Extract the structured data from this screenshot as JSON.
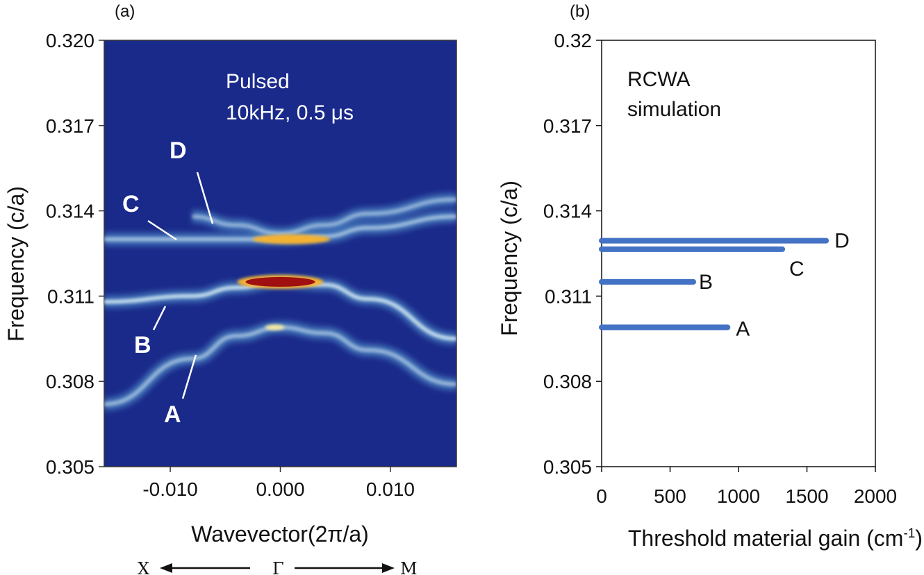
{
  "chart_data": [
    {
      "panel": "(a)",
      "type": "heatmap",
      "xlabel": "Wavevector(2π/a)",
      "ylabel": "Frequency (c/a)",
      "xlim": [
        -0.016,
        0.016
      ],
      "ylim": [
        0.305,
        0.32
      ],
      "xticks": [
        "-0.010",
        "0.000",
        "0.010"
      ],
      "xtick_values": [
        -0.01,
        0.0,
        0.01
      ],
      "yticks": [
        "0.305",
        "0.308",
        "0.311",
        "0.314",
        "0.317",
        "0.320"
      ],
      "ytick_values": [
        0.305,
        0.308,
        0.311,
        0.314,
        0.317,
        0.32
      ],
      "annotation": [
        "Pulsed",
        "10kHz, 0.5 μs"
      ],
      "direction": {
        "left": "X",
        "center": "Γ",
        "right": "M"
      },
      "colors": {
        "background": "#1a2a8a",
        "low": "#5fa8d8",
        "mid": "#f4e9a0",
        "high": "#f5b230",
        "peak": "#a01010"
      },
      "bands": [
        {
          "name": "A",
          "k": [
            -0.016,
            -0.008,
            -0.004,
            0.0,
            0.004,
            0.008,
            0.016
          ],
          "f": [
            0.3072,
            0.3088,
            0.3096,
            0.3099,
            0.3097,
            0.3091,
            0.3079
          ],
          "intensity": 0.55
        },
        {
          "name": "B",
          "k": [
            -0.016,
            -0.008,
            -0.004,
            0.0,
            0.004,
            0.008,
            0.016
          ],
          "f": [
            0.3108,
            0.311,
            0.3113,
            0.3115,
            0.3114,
            0.3109,
            0.3095
          ],
          "intensity": 0.9
        },
        {
          "name": "C",
          "k": [
            -0.016,
            -0.008,
            -0.004,
            0.0,
            0.004,
            0.008,
            0.016
          ],
          "f": [
            0.313,
            0.313,
            0.313,
            0.313,
            0.3131,
            0.3134,
            0.3138
          ],
          "intensity": 0.6
        },
        {
          "name": "D",
          "k": [
            -0.008,
            -0.004,
            0.0,
            0.004,
            0.008,
            0.016
          ],
          "f": [
            0.3138,
            0.3135,
            0.3132,
            0.3135,
            0.3139,
            0.3144
          ],
          "intensity": 0.5
        }
      ],
      "mode_labels": [
        "A",
        "B",
        "C",
        "D"
      ]
    },
    {
      "panel": "(b)",
      "type": "bar",
      "orientation": "horizontal",
      "xlabel": "Threshold material gain (cm",
      "xlabel_sup": "-1",
      "xlabel_end": ")",
      "ylabel": "Frequency (c/a)",
      "xlim": [
        0,
        2000
      ],
      "ylim": [
        0.305,
        0.32
      ],
      "xticks": [
        "0",
        "500",
        "1000",
        "1500",
        "2000"
      ],
      "xtick_values": [
        0,
        500,
        1000,
        1500,
        2000
      ],
      "yticks": [
        "0.305",
        "0.308",
        "0.311",
        "0.314",
        "0.317",
        "0.32"
      ],
      "ytick_values": [
        0.305,
        0.308,
        0.311,
        0.314,
        0.317,
        0.32
      ],
      "annotation": [
        "RCWA",
        "simulation"
      ],
      "bar_color": "#4472c4",
      "series": [
        {
          "name": "A",
          "frequency": 0.3099,
          "gain": 920
        },
        {
          "name": "B",
          "frequency": 0.3115,
          "gain": 670
        },
        {
          "name": "C",
          "frequency": 0.31265,
          "gain": 1320
        },
        {
          "name": "D",
          "frequency": 0.31295,
          "gain": 1640
        }
      ]
    }
  ]
}
